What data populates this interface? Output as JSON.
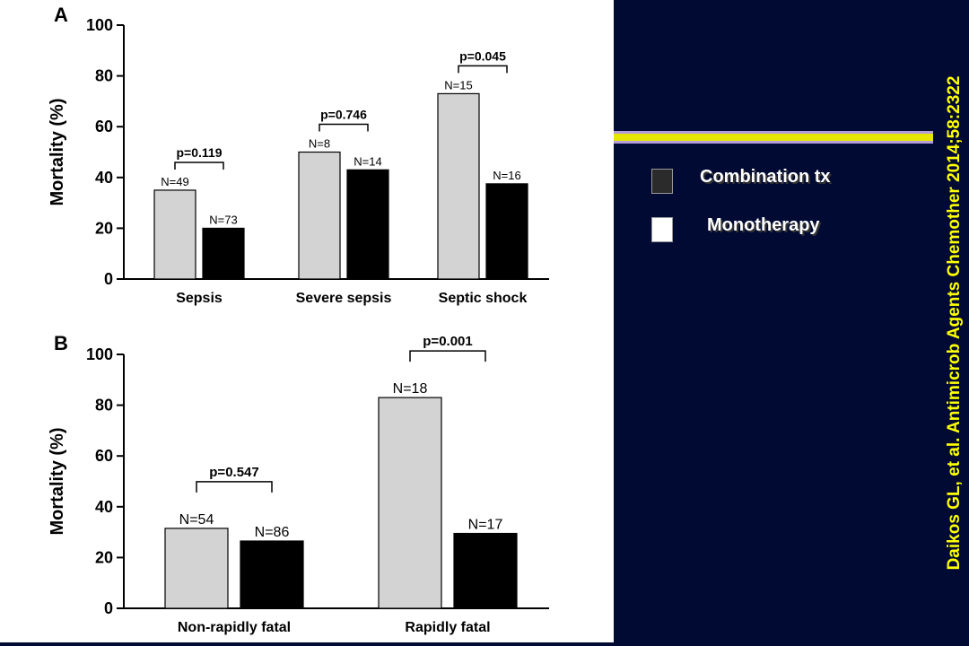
{
  "legend": {
    "combination_label": "Combination tx",
    "combination_color": "#2b2b2b",
    "monotherapy_label": "Monotherapy",
    "monotherapy_color": "#ffffff"
  },
  "citation": "Daikos GL, et al. Antimicrob Agents Chemother 2014;58:2322",
  "colors": {
    "panel_bg": "#000a33",
    "stripe_yellow": "#e6e600",
    "stripe_lavender": "#b39ddb",
    "citation": "#ffff00",
    "bar_gray": "#d3d3d3",
    "bar_black": "#000000"
  },
  "chart_data": [
    {
      "panel_label": "A",
      "type": "bar",
      "ylabel": "Mortality (%)",
      "ylim": [
        0,
        100
      ],
      "yticks": [
        0,
        20,
        40,
        60,
        80,
        100
      ],
      "categories": [
        "Sepsis",
        "Severe sepsis",
        "Septic shock"
      ],
      "series": [
        {
          "color": "#d3d3d3",
          "values": [
            35,
            50,
            73
          ],
          "n_labels": [
            "N=49",
            "N=8",
            "N=15"
          ]
        },
        {
          "color": "#000000",
          "values": [
            20,
            43,
            37.5
          ],
          "n_labels": [
            "N=73",
            "N=14",
            "N=16"
          ]
        }
      ],
      "p_values": [
        "p=0.119",
        "p=0.746",
        "p=0.045"
      ]
    },
    {
      "panel_label": "B",
      "type": "bar",
      "ylabel": "Mortality (%)",
      "ylim": [
        0,
        100
      ],
      "yticks": [
        0,
        20,
        40,
        60,
        80,
        100
      ],
      "categories": [
        "Non-rapidly fatal",
        "Rapidly fatal"
      ],
      "series": [
        {
          "color": "#d3d3d3",
          "values": [
            31.5,
            83
          ],
          "n_labels": [
            "N=54",
            "N=18"
          ]
        },
        {
          "color": "#000000",
          "values": [
            26.5,
            29.5
          ],
          "n_labels": [
            "N=86",
            "N=17"
          ]
        }
      ],
      "p_values": [
        "p=0.547",
        "p=0.001"
      ]
    }
  ]
}
